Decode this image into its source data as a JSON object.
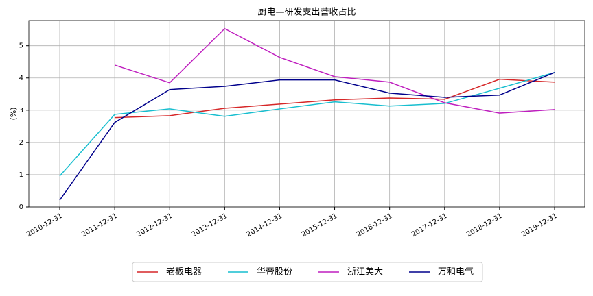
{
  "chart_data": {
    "type": "line",
    "title": "厨电—研发支出营收占比",
    "y_label": "(%)",
    "categories": [
      "2010-12-31",
      "2011-12-31",
      "2012-12-31",
      "2013-12-31",
      "2014-12-31",
      "2015-12-31",
      "2016-12-31",
      "2017-12-31",
      "2018-12-31",
      "2019-12-31"
    ],
    "series": [
      {
        "name": "老板电器",
        "color": "#d62728",
        "values": [
          null,
          2.77,
          2.83,
          3.06,
          3.19,
          3.32,
          3.38,
          3.34,
          3.96,
          3.87
        ]
      },
      {
        "name": "华帝股份",
        "color": "#17becf",
        "values": [
          0.96,
          2.87,
          3.04,
          2.81,
          3.04,
          3.26,
          3.13,
          3.21,
          3.68,
          4.17
        ]
      },
      {
        "name": "浙江美大",
        "color": "#bf1fbf",
        "values": [
          null,
          4.4,
          3.85,
          5.53,
          4.64,
          4.04,
          3.87,
          3.23,
          2.91,
          3.02
        ]
      },
      {
        "name": "万和电气",
        "color": "#00008b",
        "values": [
          0.21,
          2.62,
          3.64,
          3.74,
          3.94,
          3.94,
          3.53,
          3.4,
          3.47,
          4.17
        ]
      }
    ],
    "ylim": [
      0,
      5.78
    ],
    "yticks": [
      0,
      1,
      2,
      3,
      4,
      5
    ],
    "grid": true,
    "legend": "bottom"
  }
}
